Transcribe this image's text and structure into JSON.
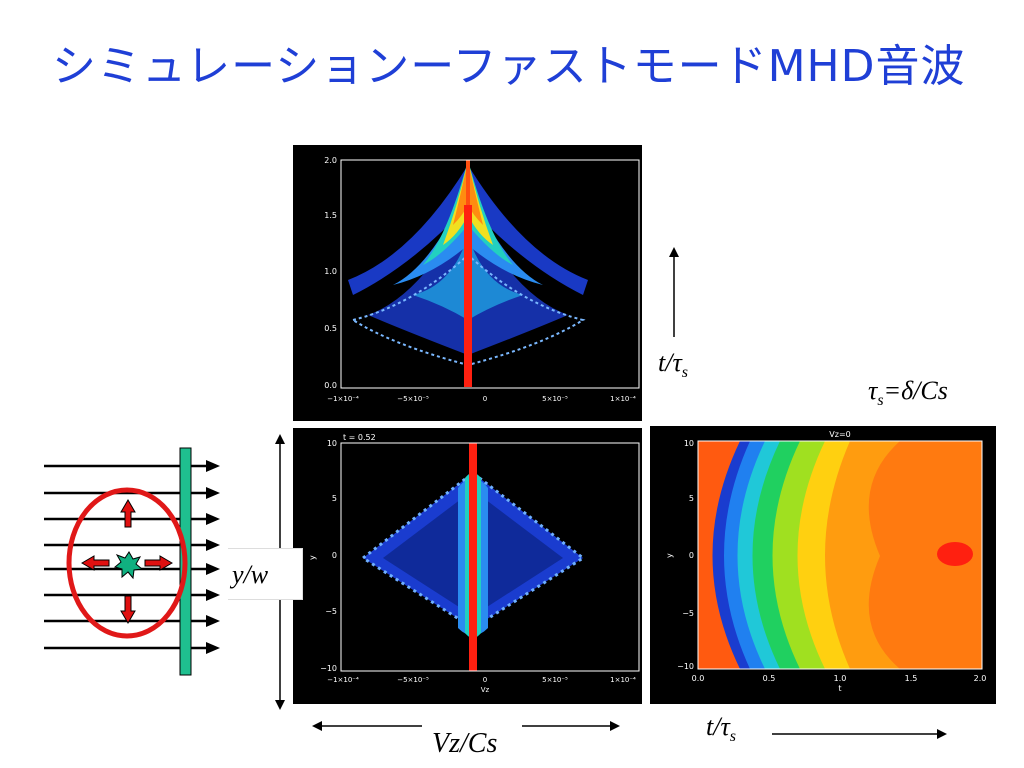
{
  "title": "シミュレーションーファストモードMHD音波",
  "labels": {
    "t_tau_top_t": "t/",
    "t_tau_top_tau": "τ",
    "t_tau_top_sub": "s",
    "tau_def_tau": "τ",
    "tau_def_sub": "s",
    "tau_def_rest": "=δ/Cs",
    "y_w": "y/w",
    "vz_cs": "Vz/Cs",
    "t_tau_bottom_t": "t/",
    "t_tau_bottom_tau": "τ",
    "t_tau_bottom_sub": "s"
  },
  "panel_top": {
    "y_ticks": [
      "0.0",
      "0.5",
      "1.0",
      "1.5",
      "2.0"
    ],
    "x_ticks": [
      "−1×10⁻⁴",
      "−5×10⁻⁵",
      "0",
      "5×10⁻⁵",
      "1×10⁻⁴"
    ]
  },
  "panel_bottom_left": {
    "annotation": "t = 0.52",
    "y_label": "y",
    "x_label": "Vz",
    "y_ticks": [
      "−10",
      "−5",
      "0",
      "5",
      "10"
    ],
    "x_ticks": [
      "−1×10⁻⁴",
      "−5×10⁻⁵",
      "0",
      "5×10⁻⁵",
      "1×10⁻⁴"
    ]
  },
  "panel_bottom_right": {
    "annotation": "Vz=0",
    "y_label": "y",
    "x_label": "t",
    "y_ticks": [
      "−10",
      "−5",
      "0",
      "5",
      "10"
    ],
    "x_ticks": [
      "0.0",
      "0.5",
      "1.0",
      "1.5",
      "2.0"
    ]
  },
  "colors": {
    "title": "#1f3fd6",
    "field_bar": "#1fbf8f",
    "ellipse": "#e01818",
    "arrow_red": "#e01010",
    "star": "#10b080"
  }
}
